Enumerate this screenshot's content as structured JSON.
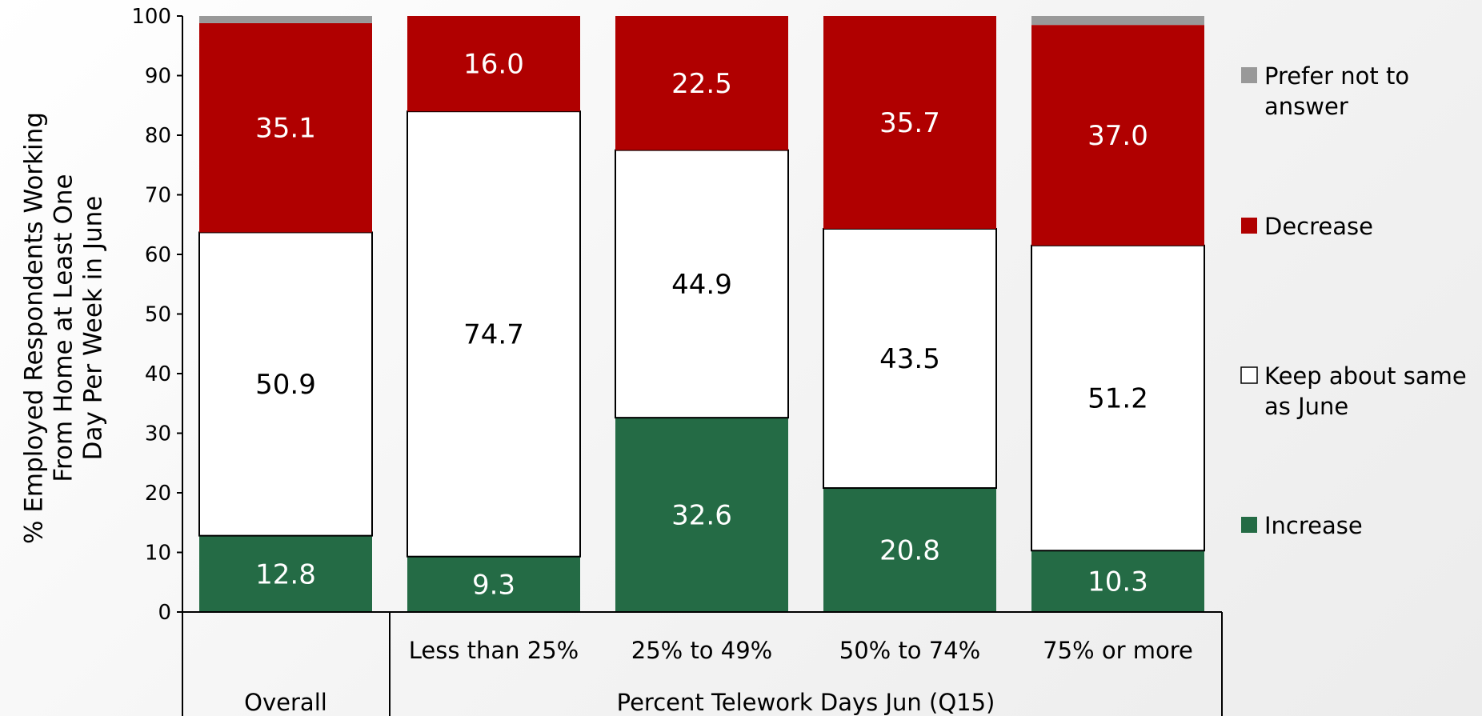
{
  "chart_data": {
    "type": "bar",
    "stacked": true,
    "ylabel": "% Employed Respondents Working\nFrom Home at Least One\nDay Per Week in June",
    "ylim": [
      0,
      100
    ],
    "yticks": [
      "0",
      "10",
      "20",
      "30",
      "40",
      "50",
      "60",
      "70",
      "80",
      "90",
      "100"
    ],
    "categories": [
      "Overall",
      "Less than 25%",
      "25% to 49%",
      "50% to 74%",
      "75% or more"
    ],
    "category_group_label": "Percent Telework Days Jun (Q15)",
    "series": [
      {
        "name": "Increase",
        "color": "#246b45",
        "values": [
          12.8,
          9.3,
          32.6,
          20.8,
          10.3
        ],
        "labels": [
          "12.8",
          "9.3",
          "32.6",
          "20.8",
          "10.3"
        ]
      },
      {
        "name": "Keep about same as June",
        "color": "#ffffff",
        "values": [
          50.9,
          74.7,
          44.9,
          43.5,
          51.2
        ],
        "labels": [
          "50.9",
          "74.7",
          "44.9",
          "43.5",
          "51.2"
        ]
      },
      {
        "name": "Decrease",
        "color": "#b00000",
        "values": [
          35.1,
          16.0,
          22.5,
          35.7,
          37.0
        ],
        "labels": [
          "35.1",
          "16.0",
          "22.5",
          "35.7",
          "37.0"
        ]
      },
      {
        "name": "Prefer not to answer",
        "color": "#999999",
        "values": [
          1.2,
          0,
          0,
          0,
          1.5
        ],
        "labels": [
          "",
          "",
          "",
          "",
          ""
        ]
      }
    ],
    "legend_order": [
      3,
      2,
      1,
      0
    ],
    "legend_labels": [
      [
        "Prefer not to",
        "answer"
      ],
      [
        "Decrease"
      ],
      [
        "Keep about same",
        "as June"
      ],
      [
        "Increase"
      ]
    ],
    "legend_position": "right"
  }
}
